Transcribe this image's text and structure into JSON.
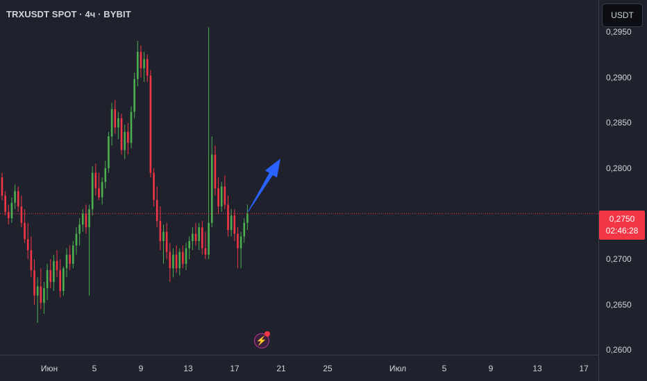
{
  "header": {
    "title": "TRXUSDT SPOT · 4ч · BYBIT"
  },
  "price_axis": {
    "currency_label": "USDT",
    "ticks": [
      "0,2950",
      "0,2900",
      "0,2850",
      "0,2800",
      "0,2700",
      "0,2650",
      "0,2600"
    ]
  },
  "time_axis": {
    "ticks": [
      "Июн",
      "5",
      "9",
      "13",
      "17",
      "21",
      "25",
      "Июл",
      "5",
      "9",
      "13",
      "17"
    ]
  },
  "last_price": {
    "price": "0,2750",
    "countdown": "02:46:28"
  },
  "colors": {
    "up": "#26a69a",
    "up_body": "#4caf50",
    "down": "#f23645",
    "background": "#1f222d",
    "arrow": "#2962ff",
    "price_line": "#f23645"
  },
  "icons": {
    "flash": "lightning-icon"
  },
  "chart_data": {
    "type": "candlestick",
    "symbol": "TRXUSDT",
    "timeframe": "4ч",
    "exchange": "BYBIT",
    "ylim": [
      0.2595,
      0.2985
    ],
    "last_price": 0.275,
    "annotation": "upward arrow from last candle",
    "candles": [
      {
        "o": 0.279,
        "h": 0.2795,
        "l": 0.2765,
        "c": 0.277
      },
      {
        "o": 0.277,
        "h": 0.2775,
        "l": 0.2748,
        "c": 0.2752
      },
      {
        "o": 0.2752,
        "h": 0.276,
        "l": 0.2738,
        "c": 0.2745
      },
      {
        "o": 0.2745,
        "h": 0.2768,
        "l": 0.274,
        "c": 0.2762
      },
      {
        "o": 0.2762,
        "h": 0.2782,
        "l": 0.2755,
        "c": 0.2775
      },
      {
        "o": 0.2775,
        "h": 0.278,
        "l": 0.2752,
        "c": 0.2758
      },
      {
        "o": 0.2758,
        "h": 0.277,
        "l": 0.2735,
        "c": 0.274
      },
      {
        "o": 0.274,
        "h": 0.2755,
        "l": 0.2718,
        "c": 0.2722
      },
      {
        "o": 0.2722,
        "h": 0.274,
        "l": 0.27,
        "c": 0.271
      },
      {
        "o": 0.271,
        "h": 0.2725,
        "l": 0.268,
        "c": 0.2688
      },
      {
        "o": 0.2688,
        "h": 0.27,
        "l": 0.265,
        "c": 0.266
      },
      {
        "o": 0.266,
        "h": 0.268,
        "l": 0.263,
        "c": 0.267
      },
      {
        "o": 0.267,
        "h": 0.269,
        "l": 0.2645,
        "c": 0.2652
      },
      {
        "o": 0.2652,
        "h": 0.2675,
        "l": 0.264,
        "c": 0.2668
      },
      {
        "o": 0.2668,
        "h": 0.2695,
        "l": 0.2655,
        "c": 0.2688
      },
      {
        "o": 0.2688,
        "h": 0.27,
        "l": 0.2668,
        "c": 0.2675
      },
      {
        "o": 0.2675,
        "h": 0.2705,
        "l": 0.2665,
        "c": 0.2698
      },
      {
        "o": 0.2698,
        "h": 0.271,
        "l": 0.268,
        "c": 0.2688
      },
      {
        "o": 0.2688,
        "h": 0.27,
        "l": 0.2658,
        "c": 0.2665
      },
      {
        "o": 0.2665,
        "h": 0.2692,
        "l": 0.266,
        "c": 0.269
      },
      {
        "o": 0.269,
        "h": 0.2712,
        "l": 0.268,
        "c": 0.2705
      },
      {
        "o": 0.2705,
        "h": 0.2715,
        "l": 0.2688,
        "c": 0.2695
      },
      {
        "o": 0.2695,
        "h": 0.272,
        "l": 0.269,
        "c": 0.2715
      },
      {
        "o": 0.2715,
        "h": 0.2735,
        "l": 0.2705,
        "c": 0.2728
      },
      {
        "o": 0.2728,
        "h": 0.2745,
        "l": 0.2715,
        "c": 0.2738
      },
      {
        "o": 0.2738,
        "h": 0.2755,
        "l": 0.273,
        "c": 0.275
      },
      {
        "o": 0.275,
        "h": 0.276,
        "l": 0.2728,
        "c": 0.2735
      },
      {
        "o": 0.2735,
        "h": 0.276,
        "l": 0.266,
        "c": 0.2755
      },
      {
        "o": 0.2755,
        "h": 0.2802,
        "l": 0.2748,
        "c": 0.2795
      },
      {
        "o": 0.2795,
        "h": 0.2805,
        "l": 0.277,
        "c": 0.2778
      },
      {
        "o": 0.2778,
        "h": 0.2795,
        "l": 0.2765,
        "c": 0.2768
      },
      {
        "o": 0.2768,
        "h": 0.279,
        "l": 0.276,
        "c": 0.2785
      },
      {
        "o": 0.2785,
        "h": 0.2808,
        "l": 0.2778,
        "c": 0.28
      },
      {
        "o": 0.28,
        "h": 0.284,
        "l": 0.2795,
        "c": 0.2835
      },
      {
        "o": 0.2835,
        "h": 0.2872,
        "l": 0.2825,
        "c": 0.2865
      },
      {
        "o": 0.2865,
        "h": 0.2875,
        "l": 0.2838,
        "c": 0.2845
      },
      {
        "o": 0.2845,
        "h": 0.2862,
        "l": 0.2832,
        "c": 0.2855
      },
      {
        "o": 0.2855,
        "h": 0.286,
        "l": 0.2815,
        "c": 0.282
      },
      {
        "o": 0.282,
        "h": 0.2848,
        "l": 0.281,
        "c": 0.284
      },
      {
        "o": 0.284,
        "h": 0.285,
        "l": 0.2815,
        "c": 0.2828
      },
      {
        "o": 0.2828,
        "h": 0.2868,
        "l": 0.2822,
        "c": 0.2862
      },
      {
        "o": 0.2862,
        "h": 0.2905,
        "l": 0.2855,
        "c": 0.2898
      },
      {
        "o": 0.2898,
        "h": 0.294,
        "l": 0.289,
        "c": 0.2928
      },
      {
        "o": 0.2928,
        "h": 0.2935,
        "l": 0.29,
        "c": 0.291
      },
      {
        "o": 0.291,
        "h": 0.2928,
        "l": 0.2895,
        "c": 0.292
      },
      {
        "o": 0.292,
        "h": 0.2925,
        "l": 0.2895,
        "c": 0.2902
      },
      {
        "o": 0.2902,
        "h": 0.2908,
        "l": 0.279,
        "c": 0.2795
      },
      {
        "o": 0.2795,
        "h": 0.28,
        "l": 0.2758,
        "c": 0.2765
      },
      {
        "o": 0.2765,
        "h": 0.278,
        "l": 0.2735,
        "c": 0.2742
      },
      {
        "o": 0.2742,
        "h": 0.2758,
        "l": 0.271,
        "c": 0.272
      },
      {
        "o": 0.272,
        "h": 0.2738,
        "l": 0.2695,
        "c": 0.273
      },
      {
        "o": 0.273,
        "h": 0.274,
        "l": 0.27,
        "c": 0.2708
      },
      {
        "o": 0.2708,
        "h": 0.2718,
        "l": 0.2675,
        "c": 0.269
      },
      {
        "o": 0.269,
        "h": 0.2712,
        "l": 0.268,
        "c": 0.2705
      },
      {
        "o": 0.2705,
        "h": 0.2715,
        "l": 0.2685,
        "c": 0.269
      },
      {
        "o": 0.269,
        "h": 0.2712,
        "l": 0.2682,
        "c": 0.2708
      },
      {
        "o": 0.2708,
        "h": 0.2715,
        "l": 0.269,
        "c": 0.2695
      },
      {
        "o": 0.2695,
        "h": 0.2718,
        "l": 0.2688,
        "c": 0.2712
      },
      {
        "o": 0.2712,
        "h": 0.2725,
        "l": 0.27,
        "c": 0.272
      },
      {
        "o": 0.272,
        "h": 0.2735,
        "l": 0.271,
        "c": 0.2728
      },
      {
        "o": 0.2728,
        "h": 0.274,
        "l": 0.2715,
        "c": 0.272
      },
      {
        "o": 0.272,
        "h": 0.274,
        "l": 0.271,
        "c": 0.2735
      },
      {
        "o": 0.2735,
        "h": 0.2742,
        "l": 0.2705,
        "c": 0.2712
      },
      {
        "o": 0.2712,
        "h": 0.273,
        "l": 0.27,
        "c": 0.2705
      },
      {
        "o": 0.2705,
        "h": 0.2955,
        "l": 0.27,
        "c": 0.274
      },
      {
        "o": 0.274,
        "h": 0.2835,
        "l": 0.2735,
        "c": 0.2815
      },
      {
        "o": 0.2815,
        "h": 0.2825,
        "l": 0.277,
        "c": 0.2778
      },
      {
        "o": 0.2778,
        "h": 0.279,
        "l": 0.275,
        "c": 0.2758
      },
      {
        "o": 0.2758,
        "h": 0.2785,
        "l": 0.2752,
        "c": 0.278
      },
      {
        "o": 0.278,
        "h": 0.2792,
        "l": 0.2755,
        "c": 0.276
      },
      {
        "o": 0.276,
        "h": 0.277,
        "l": 0.2725,
        "c": 0.2732
      },
      {
        "o": 0.2732,
        "h": 0.2755,
        "l": 0.2725,
        "c": 0.2748
      },
      {
        "o": 0.2748,
        "h": 0.2755,
        "l": 0.272,
        "c": 0.2728
      },
      {
        "o": 0.2728,
        "h": 0.2735,
        "l": 0.269,
        "c": 0.2712
      },
      {
        "o": 0.2712,
        "h": 0.273,
        "l": 0.269,
        "c": 0.2725
      },
      {
        "o": 0.2725,
        "h": 0.2745,
        "l": 0.2718,
        "c": 0.274
      },
      {
        "o": 0.274,
        "h": 0.276,
        "l": 0.2732,
        "c": 0.275
      }
    ]
  }
}
